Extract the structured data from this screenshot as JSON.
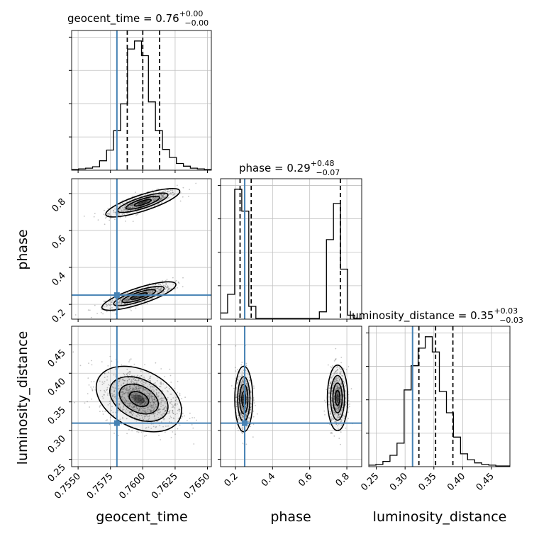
{
  "chart_data": {
    "type": "corner",
    "parameters": [
      "geocent_time",
      "phase",
      "luminosity_distance"
    ],
    "truths": {
      "geocent_time": 0.758,
      "phase": 0.25,
      "luminosity_distance": 0.313
    },
    "colors": {
      "truth": "#4682b4",
      "hist": "#000000",
      "grid": "#c0c0c0",
      "contour": "#000000",
      "scatter": "#555555"
    },
    "titles": {
      "geocent_time": {
        "name": "geocent_time",
        "median": "0.76",
        "plus": "+0.00",
        "minus": "−0.00"
      },
      "phase": {
        "name": "phase",
        "median": "0.29",
        "plus": "+0.48",
        "minus": "−0.07"
      },
      "luminosity_distance": {
        "name": "luminosity_distance",
        "median": "0.35",
        "plus": "+0.03",
        "minus": "−0.03"
      }
    },
    "axis_labels": {
      "x": [
        "geocent_time",
        "phase",
        "luminosity_distance"
      ],
      "y_phase": "phase",
      "y_luminosity_distance": "luminosity_distance"
    },
    "ranges": {
      "geocent_time": [
        0.7545,
        0.7653
      ],
      "phase": [
        0.12,
        0.88
      ],
      "luminosity_distance": [
        0.237,
        0.482
      ]
    },
    "ticks": {
      "geocent_time": [
        0.755,
        0.7575,
        0.76,
        0.7625,
        0.765
      ],
      "geocent_time_labels": [
        "0.7550",
        "0.7575",
        "0.7600",
        "0.7625",
        "0.7650"
      ],
      "phase": [
        0.2,
        0.4,
        0.6,
        0.8
      ],
      "phase_labels": [
        "0.2",
        "0.4",
        "0.6",
        "0.8"
      ],
      "luminosity_distance": [
        0.25,
        0.3,
        0.35,
        0.4,
        0.45
      ],
      "luminosity_distance_labels": [
        "0.25",
        "0.30",
        "0.35",
        "0.40",
        "0.45"
      ]
    },
    "quantiles": {
      "geocent_time": [
        0.7588,
        0.76,
        0.7613
      ],
      "phase": [
        0.225,
        0.285,
        0.765
      ],
      "luminosity_distance": [
        0.324,
        0.353,
        0.383
      ]
    },
    "histograms": {
      "geocent_time": {
        "edges_start": 0.7545,
        "edges_step": 0.00054,
        "counts": [
          0,
          1,
          2,
          4,
          13,
          29,
          58,
          98,
          180,
          192,
          170,
          101,
          58,
          30,
          18,
          9,
          5,
          2,
          1,
          0
        ]
      },
      "phase": {
        "edges_start": 0.12,
        "edges_step": 0.038,
        "counts": [
          5,
          22,
          118,
          98,
          11,
          0,
          0,
          0,
          0,
          0,
          0,
          0,
          0,
          0,
          6,
          72,
          105,
          45,
          3,
          0
        ]
      },
      "luminosity_distance": {
        "edges_start": 0.237,
        "edges_step": 0.01225,
        "counts": [
          1,
          2,
          6,
          14,
          30,
          100,
          132,
          155,
          170,
          150,
          98,
          70,
          38,
          16,
          8,
          4,
          2,
          1,
          0,
          0
        ]
      }
    },
    "grid": true
  }
}
